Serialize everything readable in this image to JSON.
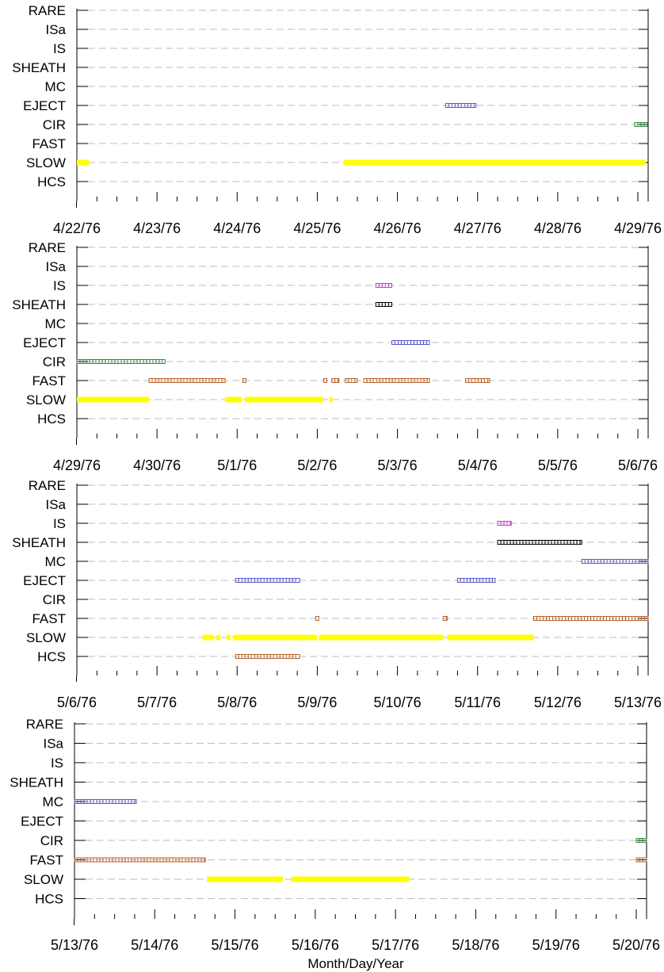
{
  "chart_data": {
    "type": "timeline",
    "xlabel": "Month/Day/Year",
    "categories": [
      "RARE",
      "ISa",
      "IS",
      "SHEATH",
      "MC",
      "EJECT",
      "CIR",
      "FAST",
      "SLOW",
      "HCS"
    ],
    "colors": {
      "SLOW": "#ffff00",
      "FAST": "#b5612a",
      "CIR": "#2e8b3a",
      "EJECT": "#5a5ac8",
      "MC": "#5a5ac8",
      "HCS": "#b5612a",
      "SHEATH": "#000000",
      "IS": "#cc33cc",
      "ISa": "#cc33cc",
      "RARE": "#000000"
    },
    "panels": [
      {
        "start": "4/22/76",
        "tick_labels": [
          "4/22/76",
          "4/23/76",
          "4/24/76",
          "4/25/76",
          "4/26/76",
          "4/27/76",
          "4/28/76",
          "4/29/76"
        ],
        "intervals": [
          {
            "cat": "SLOW",
            "from": 0.0,
            "to": 0.15
          },
          {
            "cat": "SLOW",
            "from": 3.33,
            "to": 7.1
          },
          {
            "cat": "EJECT",
            "from": 4.6,
            "to": 4.98
          },
          {
            "cat": "CIR",
            "from": 6.96,
            "to": 7.12
          }
        ]
      },
      {
        "start": "4/29/76",
        "tick_labels": [
          "4/29/76",
          "4/30/76",
          "5/1/76",
          "5/2/76",
          "5/3/76",
          "5/4/76",
          "5/5/76",
          "5/6/76"
        ],
        "intervals": [
          {
            "cat": "SLOW",
            "from": 0.0,
            "to": 0.9
          },
          {
            "cat": "SLOW",
            "from": 1.85,
            "to": 2.06
          },
          {
            "cat": "SLOW",
            "from": 2.1,
            "to": 3.08
          },
          {
            "cat": "SLOW",
            "from": 3.15,
            "to": 3.19
          },
          {
            "cat": "CIR",
            "from": 0.0,
            "to": 1.1
          },
          {
            "cat": "FAST",
            "from": 0.9,
            "to": 1.85
          },
          {
            "cat": "FAST",
            "from": 2.07,
            "to": 2.11
          },
          {
            "cat": "FAST",
            "from": 3.08,
            "to": 3.12
          },
          {
            "cat": "FAST",
            "from": 3.18,
            "to": 3.27
          },
          {
            "cat": "FAST",
            "from": 3.35,
            "to": 3.5
          },
          {
            "cat": "FAST",
            "from": 3.58,
            "to": 4.4
          },
          {
            "cat": "FAST",
            "from": 4.85,
            "to": 5.15
          },
          {
            "cat": "IS",
            "from": 3.73,
            "to": 3.93
          },
          {
            "cat": "SHEATH",
            "from": 3.73,
            "to": 3.93
          },
          {
            "cat": "EJECT",
            "from": 3.93,
            "to": 4.4
          }
        ]
      },
      {
        "start": "5/6/76",
        "tick_labels": [
          "5/6/76",
          "5/7/76",
          "5/8/76",
          "5/9/76",
          "5/10/76",
          "5/11/76",
          "5/12/76",
          "5/13/76"
        ],
        "intervals": [
          {
            "cat": "SLOW",
            "from": 1.57,
            "to": 1.7
          },
          {
            "cat": "SLOW",
            "from": 1.74,
            "to": 1.79
          },
          {
            "cat": "SLOW",
            "from": 1.87,
            "to": 1.92
          },
          {
            "cat": "SLOW",
            "from": 1.95,
            "to": 3.0
          },
          {
            "cat": "SLOW",
            "from": 3.02,
            "to": 4.57
          },
          {
            "cat": "SLOW",
            "from": 4.62,
            "to": 5.7
          },
          {
            "cat": "HCS",
            "from": 1.98,
            "to": 2.78
          },
          {
            "cat": "EJECT",
            "from": 1.98,
            "to": 2.78
          },
          {
            "cat": "EJECT",
            "from": 4.75,
            "to": 5.22
          },
          {
            "cat": "FAST",
            "from": 2.98,
            "to": 3.02
          },
          {
            "cat": "FAST",
            "from": 4.57,
            "to": 4.62
          },
          {
            "cat": "FAST",
            "from": 5.7,
            "to": 7.15
          },
          {
            "cat": "IS",
            "from": 5.25,
            "to": 5.42
          },
          {
            "cat": "SHEATH",
            "from": 5.25,
            "to": 6.3
          },
          {
            "cat": "MC",
            "from": 6.3,
            "to": 7.15
          }
        ]
      },
      {
        "start": "5/13/76",
        "tick_labels": [
          "5/13/76",
          "5/14/76",
          "5/15/76",
          "5/16/76",
          "5/17/76",
          "5/18/76",
          "5/19/76",
          "5/20/76"
        ],
        "intervals": [
          {
            "cat": "MC",
            "from": 0.0,
            "to": 0.77
          },
          {
            "cat": "FAST",
            "from": 0.0,
            "to": 1.63
          },
          {
            "cat": "SLOW",
            "from": 1.65,
            "to": 2.6
          },
          {
            "cat": "SLOW",
            "from": 2.7,
            "to": 4.17
          },
          {
            "cat": "CIR",
            "from": 7.0,
            "to": 7.15
          },
          {
            "cat": "FAST",
            "from": 7.0,
            "to": 7.15
          }
        ]
      }
    ]
  }
}
